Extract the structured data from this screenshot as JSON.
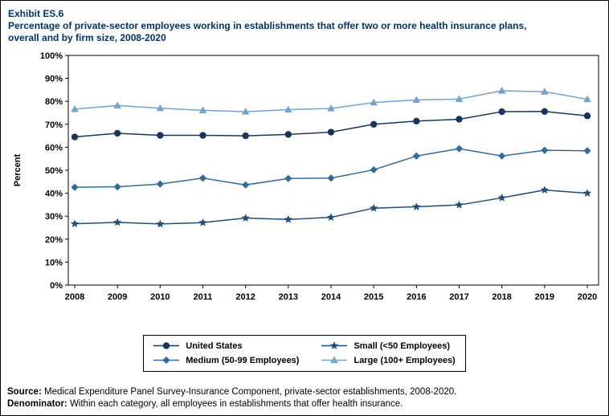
{
  "page": {
    "exhibit_label": "Exhibit ES.6",
    "title_line1": "Percentage of private-sector employees working in establishments that offer two or more health insurance plans,",
    "title_line2": "overall and by firm size, 2008-2020",
    "source_label": "Source:",
    "source_text": " Medical Expenditure Panel Survey-Insurance Component, private-sector establishments, 2008-2020.",
    "denominator_label": "Denominator:",
    "denominator_text": " Within each category, all employees in establishments that offer health insurance."
  },
  "chart_data": {
    "type": "line",
    "title": "Percentage of private-sector employees working in establishments that offer two or more health insurance plans, overall and by firm size, 2008-2020",
    "xlabel": "",
    "ylabel": "Percent",
    "ylim": [
      0,
      100
    ],
    "ytick_step": 10,
    "ytick_suffix": "%",
    "grid": false,
    "legend_position": "bottom",
    "x": [
      2008,
      2009,
      2010,
      2011,
      2012,
      2013,
      2014,
      2015,
      2016,
      2017,
      2018,
      2019,
      2020
    ],
    "series": [
      {
        "name": "United States",
        "marker": "circle",
        "color": "#16365C",
        "values": [
          64.5,
          66.1,
          65.2,
          65.2,
          65.0,
          65.6,
          66.6,
          70.0,
          71.4,
          72.2,
          75.5,
          75.6,
          73.7
        ]
      },
      {
        "name": "Small (<50 Employees)",
        "marker": "star",
        "color": "#1F4E79",
        "values": [
          26.7,
          27.3,
          26.6,
          27.2,
          29.2,
          28.6,
          29.5,
          33.5,
          34.1,
          34.9,
          38.0,
          41.4,
          40.0
        ]
      },
      {
        "name": "Medium (50-99 Employees)",
        "marker": "diamond",
        "color": "#336A97",
        "values": [
          42.6,
          42.8,
          44.0,
          46.6,
          43.6,
          46.4,
          46.6,
          50.2,
          56.2,
          59.4,
          56.2,
          58.7,
          58.5
        ]
      },
      {
        "name": "Large (100+ Employees)",
        "marker": "triangle",
        "color": "#74A3CC",
        "values": [
          76.6,
          78.2,
          77.0,
          76.1,
          75.5,
          76.4,
          76.9,
          79.5,
          80.6,
          81.0,
          84.6,
          84.2,
          80.9
        ]
      }
    ]
  }
}
